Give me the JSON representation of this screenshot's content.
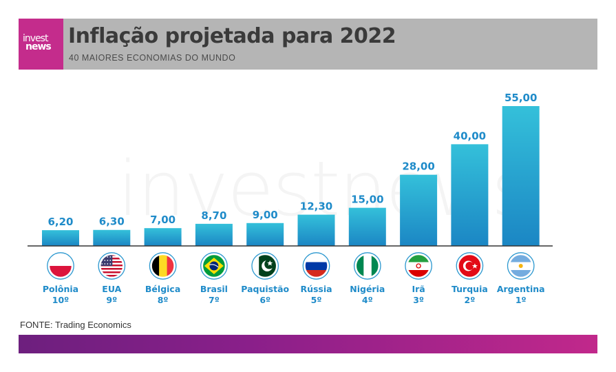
{
  "header": {
    "logo_line1": "invest",
    "logo_line2": "news",
    "title": "Inflação projetada para 2022",
    "subtitle": "40 MAIORES ECONOMIAS DO MUNDO"
  },
  "watermark": "investnews",
  "chart_data": {
    "type": "bar",
    "title": "Inflação projetada para 2022",
    "subtitle": "40 MAIORES ECONOMIAS DO MUNDO",
    "categories": [
      "Polônia",
      "EUA",
      "Bélgica",
      "Brasil",
      "Paquistão",
      "Rússia",
      "Nigéria",
      "Irã",
      "Turquia",
      "Argentina"
    ],
    "ranks": [
      "10º",
      "9º",
      "8º",
      "7º",
      "6º",
      "5º",
      "4º",
      "3º",
      "2º",
      "1º"
    ],
    "values": [
      6.2,
      6.3,
      7.0,
      8.7,
      9.0,
      12.3,
      15.0,
      28.0,
      40.0,
      55.0
    ],
    "value_labels": [
      "6,20",
      "6,30",
      "7,00",
      "8,70",
      "9,00",
      "12,30",
      "15,00",
      "28,00",
      "40,00",
      "55,00"
    ],
    "ylim": [
      0,
      55
    ],
    "grid": false,
    "xlabel": "",
    "ylabel": ""
  },
  "flags": [
    "poland-flag-icon",
    "usa-flag-icon",
    "belgium-flag-icon",
    "brazil-flag-icon",
    "pakistan-flag-icon",
    "russia-flag-icon",
    "nigeria-flag-icon",
    "iran-flag-icon",
    "turkey-flag-icon",
    "argentina-flag-icon"
  ],
  "source": "FONTE: Trading Economics",
  "colors": {
    "bar_top": "#34c0da",
    "bar_bottom": "#1b86c4",
    "label": "#1f8bc9",
    "brand": "#c42c8c",
    "header_bg": "#b5b5b5"
  }
}
